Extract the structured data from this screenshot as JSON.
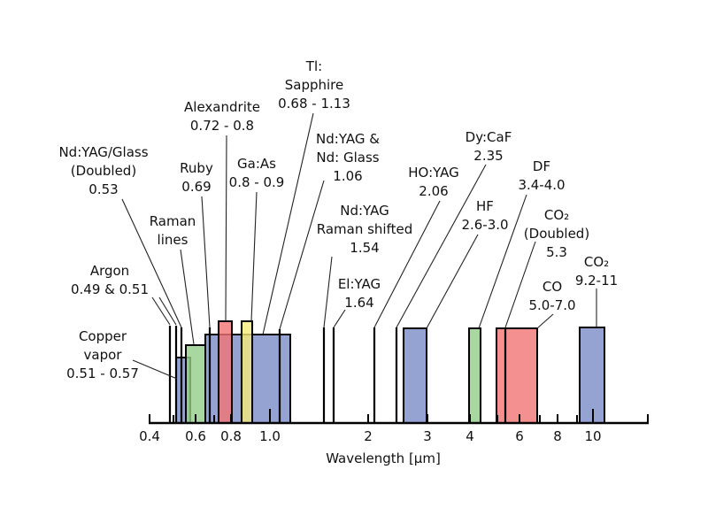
{
  "axis": {
    "label": "Wavelength [µm]",
    "scale": "log",
    "tick_labels": [
      "0.4",
      "0.6",
      "0.8",
      "1.0",
      "2",
      "3",
      "4",
      "6",
      "8",
      "10"
    ]
  },
  "colors": {
    "blue": "#7a8cc8",
    "green": "#92ce88",
    "red": "#f17474",
    "yellow": "#f5eb7b",
    "line": "#000000"
  },
  "lasers": [
    {
      "label_lines": [
        "Copper",
        "vapor",
        "0.51 - 0.57"
      ],
      "range": [
        0.51,
        0.57
      ],
      "color": "blue"
    },
    {
      "label_lines": [
        "Argon",
        "0.49 & 0.51"
      ],
      "values": [
        0.49,
        0.51
      ]
    },
    {
      "label_lines": [
        "Nd:YAG/Glass",
        "(Doubled)",
        "0.53"
      ],
      "values": [
        0.53
      ]
    },
    {
      "label_lines": [
        "Raman",
        "lines"
      ],
      "color": "green"
    },
    {
      "label_lines": [
        "Ruby",
        "0.69"
      ],
      "values": [
        0.69
      ]
    },
    {
      "label_lines": [
        "Alexandrite",
        "0.72 - 0.8"
      ],
      "range": [
        0.72,
        0.8
      ],
      "color": "red"
    },
    {
      "label_lines": [
        "Ga:As",
        "0.8 - 0.9"
      ],
      "range": [
        0.8,
        0.9
      ],
      "color": "yellow"
    },
    {
      "label_lines": [
        "Tl:",
        "Sapphire",
        "0.68 - 1.13"
      ],
      "range": [
        0.68,
        1.13
      ],
      "color": "blue"
    },
    {
      "label_lines": [
        "Nd:YAG &",
        "Nd: Glass",
        "1.06"
      ],
      "values": [
        1.06
      ]
    },
    {
      "label_lines": [
        "Nd:YAG",
        "Raman shifted",
        "1.54"
      ],
      "values": [
        1.54
      ]
    },
    {
      "label_lines": [
        "El:YAG",
        "1.64"
      ],
      "values": [
        1.64
      ]
    },
    {
      "label_lines": [
        "HO:YAG",
        "2.06"
      ],
      "values": [
        2.06
      ]
    },
    {
      "label_lines": [
        "Dy:CaF",
        "2.35"
      ],
      "values": [
        2.35
      ]
    },
    {
      "label_lines": [
        "HF",
        "2.6-3.0"
      ],
      "range": [
        2.6,
        3.0
      ],
      "color": "blue"
    },
    {
      "label_lines": [
        "DF",
        "3.4-4.0"
      ],
      "range": [
        3.4,
        4.0
      ],
      "color": "green"
    },
    {
      "label_lines": [
        "CO",
        "5.0-7.0"
      ],
      "range": [
        5.0,
        7.0
      ],
      "color": "red"
    },
    {
      "label_lines": [
        "CO₂",
        "(Doubled)",
        "5.3"
      ],
      "values": [
        5.3
      ]
    },
    {
      "label_lines": [
        "CO₂",
        "9.2-11"
      ],
      "range": [
        9.2,
        11
      ],
      "color": "blue"
    }
  ]
}
